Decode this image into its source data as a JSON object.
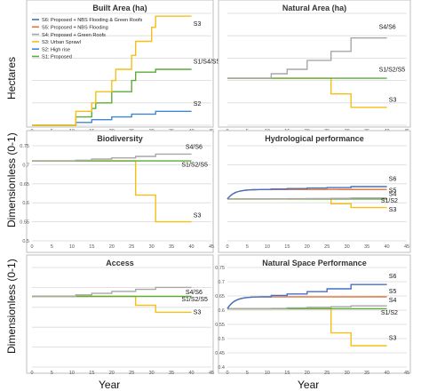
{
  "colors": {
    "S1": "#5cab3a",
    "S2": "#3f87d0",
    "S3": "#f6bf17",
    "S4": "#a7a7a7",
    "S5": "#e2763a",
    "S6": "#4471c4",
    "grid": "#d9d9d9",
    "frame": "#bfbfbf"
  },
  "legend": [
    {
      "id": "S6",
      "label": "S6: Proposed + NBS Flooding & Green Roofs",
      "color": "#4471c4"
    },
    {
      "id": "S5",
      "label": "S5: Proposed + NBS Flooding",
      "color": "#e2763a"
    },
    {
      "id": "S4",
      "label": "S4: Proposed + Green Roofs",
      "color": "#a7a7a7"
    },
    {
      "id": "S3",
      "label": "S3: Urban Sprawl",
      "color": "#f6bf17"
    },
    {
      "id": "S2",
      "label": "S2: High rise",
      "color": "#3f87d0"
    },
    {
      "id": "S1",
      "label": "S1: Proposed",
      "color": "#5cab3a"
    }
  ],
  "axis_labels": {
    "row1_y": "Hectares",
    "row2_y": "Dimensionless (0-1)",
    "row3_y": "Dimensionless (0-1)",
    "col1_x": "Year",
    "col2_x": "Year"
  },
  "chart_data": [
    {
      "type": "line",
      "title": "Built Area (ha)",
      "xlim": [
        0,
        45
      ],
      "xticks": [
        "0",
        "5",
        "10",
        "15",
        "20",
        "25",
        "30",
        "35",
        "40",
        "45"
      ],
      "ylim": [
        0,
        40
      ],
      "yticks": [],
      "series": [
        {
          "name": "S3",
          "x": [
            0,
            10,
            11,
            11,
            15,
            15,
            16,
            16,
            20,
            20,
            21,
            21,
            25,
            25,
            26,
            26,
            30,
            30,
            31,
            31,
            40
          ],
          "y": [
            0,
            0,
            0,
            5,
            5,
            8,
            8,
            12,
            12,
            16,
            16,
            20,
            20,
            25,
            25,
            30,
            30,
            35,
            35,
            39,
            39
          ]
        },
        {
          "name": "S1/S4/S5/S6",
          "x": [
            0,
            10,
            11,
            11,
            15,
            15,
            16,
            16,
            20,
            20,
            25,
            25,
            26,
            26,
            31,
            31,
            40
          ],
          "y": [
            0,
            0,
            0,
            3,
            3,
            6,
            6,
            8,
            8,
            12,
            12,
            16,
            16,
            19,
            19,
            20,
            20
          ]
        },
        {
          "name": "S2",
          "x": [
            0,
            10,
            11,
            11,
            15,
            15,
            20,
            20,
            25,
            25,
            31,
            31,
            40
          ],
          "y": [
            0,
            0,
            0,
            1,
            1,
            2,
            2,
            3,
            3,
            4,
            4,
            5,
            5
          ]
        }
      ],
      "labels": [
        {
          "text": "S3",
          "x": 40.5,
          "y": 35.5
        },
        {
          "text": "S1/S4/S5/S6",
          "x": 40.5,
          "y": 22
        },
        {
          "text": "S2",
          "x": 40.5,
          "y": 7
        }
      ]
    },
    {
      "type": "line",
      "title": "Natural Area (ha)",
      "xlim": [
        0,
        45
      ],
      "xticks": [
        "0",
        "5",
        "10",
        "15",
        "20",
        "25",
        "30",
        "35",
        "40",
        "45"
      ],
      "ylim": [
        40,
        90
      ],
      "yticks": [],
      "series": [
        {
          "name": "S4/S6",
          "x": [
            0,
            10,
            11,
            11,
            15,
            15,
            20,
            20,
            26,
            26,
            31,
            31,
            40
          ],
          "y": [
            61,
            61,
            61,
            63,
            63,
            65,
            65,
            69,
            69,
            73,
            73,
            79,
            79
          ]
        },
        {
          "name": "S1/S2/S5",
          "x": [
            0,
            40
          ],
          "y": [
            61,
            61
          ]
        },
        {
          "name": "S3",
          "x": [
            0,
            26,
            26,
            31,
            31,
            40
          ],
          "y": [
            61,
            61,
            54,
            54,
            48,
            48
          ]
        }
      ],
      "labels": [
        {
          "text": "S4/S6",
          "x": 38,
          "y": 83
        },
        {
          "text": "S1/S2/S5",
          "x": 38,
          "y": 64
        },
        {
          "text": "S3",
          "x": 40.5,
          "y": 50.5
        }
      ]
    },
    {
      "type": "line",
      "title": "Biodiversity",
      "xlim": [
        0,
        45
      ],
      "xticks": [
        "0",
        "5",
        "10",
        "15",
        "20",
        "25",
        "30",
        "35",
        "40",
        "45"
      ],
      "ylim": [
        0.5,
        0.75
      ],
      "yticks": [
        "0.5",
        "0.55",
        "0.6",
        "0.65",
        "0.7",
        "0.75"
      ],
      "series": [
        {
          "name": "S4/S6",
          "x": [
            0,
            10,
            11,
            11,
            15,
            15,
            20,
            20,
            26,
            26,
            31,
            31,
            40
          ],
          "y": [
            0.71,
            0.71,
            0.71,
            0.712,
            0.712,
            0.715,
            0.715,
            0.718,
            0.718,
            0.722,
            0.722,
            0.728,
            0.728
          ]
        },
        {
          "name": "S1/S2/S5",
          "x": [
            0,
            40
          ],
          "y": [
            0.71,
            0.71
          ]
        },
        {
          "name": "S3",
          "x": [
            0,
            26,
            26,
            31,
            31,
            40
          ],
          "y": [
            0.71,
            0.71,
            0.62,
            0.62,
            0.55,
            0.55
          ]
        }
      ],
      "labels": [
        {
          "text": "S4/S6",
          "x": 38.5,
          "y": 0.742
        },
        {
          "text": "S1/S2/S5",
          "x": 37.5,
          "y": 0.695
        },
        {
          "text": "S3",
          "x": 40.5,
          "y": 0.562
        }
      ]
    },
    {
      "type": "line",
      "title": "Hydrological performance",
      "xlim": [
        0,
        45
      ],
      "xticks": [
        "0",
        "5",
        "10",
        "15",
        "20",
        "25",
        "30",
        "35",
        "40",
        "45"
      ],
      "ylim": [
        0,
        1
      ],
      "yticks": [],
      "series": [
        {
          "name": "S6",
          "curve": "rise",
          "start": 0.44,
          "plateau": 0.54,
          "x": [
            0,
            10,
            11,
            11,
            15,
            15,
            20,
            20,
            25,
            25,
            31,
            31,
            40
          ],
          "y": [
            0.54,
            0.54,
            0.54,
            0.545,
            0.545,
            0.55,
            0.55,
            0.555,
            0.555,
            0.56,
            0.56,
            0.57,
            0.57
          ]
        },
        {
          "name": "S5",
          "curve": "rise",
          "start": 0.44,
          "plateau": 0.54,
          "x": [
            0,
            40
          ],
          "y": [
            0.54,
            0.54
          ]
        },
        {
          "name": "S4",
          "x": [
            0,
            10,
            11,
            11,
            15,
            15,
            20,
            20,
            26,
            26,
            31,
            31,
            40
          ],
          "y": [
            0.44,
            0.44,
            0.44,
            0.441,
            0.441,
            0.443,
            0.443,
            0.445,
            0.445,
            0.447,
            0.447,
            0.45,
            0.45
          ]
        },
        {
          "name": "S1/S2",
          "x": [
            0,
            40
          ],
          "y": [
            0.44,
            0.44
          ]
        },
        {
          "name": "S3",
          "x": [
            0,
            26,
            26,
            31,
            31,
            40
          ],
          "y": [
            0.44,
            0.44,
            0.39,
            0.39,
            0.35,
            0.35
          ]
        }
      ],
      "labels": [
        {
          "text": "S6",
          "x": 40.5,
          "y": 0.63
        },
        {
          "text": "S5",
          "x": 40.5,
          "y": 0.51
        },
        {
          "text": "S4",
          "x": 40.5,
          "y": 0.47
        },
        {
          "text": "S1/S2",
          "x": 38.5,
          "y": 0.4
        },
        {
          "text": "S3",
          "x": 40.5,
          "y": 0.31
        }
      ]
    },
    {
      "type": "line",
      "title": "Access",
      "xlim": [
        0,
        45
      ],
      "xticks": [
        "0",
        "5",
        "10",
        "15",
        "20",
        "25",
        "30",
        "35",
        "40",
        "45"
      ],
      "ylim": [
        0,
        1
      ],
      "yticks": [],
      "series": [
        {
          "name": "S4/S6",
          "x": [
            0,
            10,
            11,
            11,
            15,
            15,
            20,
            20,
            26,
            26,
            31,
            31,
            40
          ],
          "y": [
            0.71,
            0.71,
            0.71,
            0.725,
            0.725,
            0.74,
            0.74,
            0.76,
            0.76,
            0.78,
            0.78,
            0.8,
            0.8
          ]
        },
        {
          "name": "S1/S2/S5",
          "x": [
            0,
            40
          ],
          "y": [
            0.71,
            0.71
          ]
        },
        {
          "name": "S3",
          "x": [
            0,
            26,
            26,
            31,
            31,
            40
          ],
          "y": [
            0.71,
            0.71,
            0.62,
            0.62,
            0.55,
            0.55
          ]
        }
      ],
      "labels": [
        {
          "text": "S4/S6",
          "x": 38.5,
          "y": 0.73
        },
        {
          "text": "S1/S2/S5",
          "x": 37.5,
          "y": 0.66
        },
        {
          "text": "S3",
          "x": 40.5,
          "y": 0.53
        }
      ]
    },
    {
      "type": "line",
      "title": "Natural Space Performance",
      "xlim": [
        0,
        45
      ],
      "xticks": [
        "0",
        "5",
        "10",
        "15",
        "20",
        "25",
        "30",
        "35",
        "40",
        "45"
      ],
      "ylim": [
        0.4,
        0.75
      ],
      "yticks": [
        "0.4",
        "0.45",
        "0.5",
        "0.55",
        "0.6",
        "0.65",
        "0.7",
        "0.75"
      ],
      "series": [
        {
          "name": "S6",
          "curve": "rise",
          "start": 0.605,
          "plateau": 0.647,
          "x": [
            0,
            10,
            11,
            11,
            15,
            15,
            20,
            20,
            25,
            25,
            31,
            31,
            40
          ],
          "y": [
            0.647,
            0.647,
            0.647,
            0.652,
            0.652,
            0.657,
            0.657,
            0.665,
            0.665,
            0.675,
            0.675,
            0.69,
            0.69
          ]
        },
        {
          "name": "S5",
          "curve": "rise",
          "start": 0.605,
          "plateau": 0.647,
          "x": [
            0,
            40
          ],
          "y": [
            0.647,
            0.647
          ]
        },
        {
          "name": "S4",
          "x": [
            0,
            10,
            11,
            11,
            15,
            15,
            20,
            20,
            26,
            26,
            31,
            31,
            40
          ],
          "y": [
            0.605,
            0.605,
            0.605,
            0.606,
            0.606,
            0.608,
            0.608,
            0.61,
            0.61,
            0.612,
            0.612,
            0.615,
            0.615
          ]
        },
        {
          "name": "S1/S2",
          "x": [
            0,
            40
          ],
          "y": [
            0.605,
            0.605
          ]
        },
        {
          "name": "S3",
          "x": [
            0,
            26,
            26,
            31,
            31,
            40
          ],
          "y": [
            0.605,
            0.605,
            0.52,
            0.52,
            0.475,
            0.475
          ]
        }
      ],
      "labels": [
        {
          "text": "S6",
          "x": 40.5,
          "y": 0.713
        },
        {
          "text": "S5",
          "x": 40.5,
          "y": 0.66
        },
        {
          "text": "S4",
          "x": 40.5,
          "y": 0.628
        },
        {
          "text": "S1/S2",
          "x": 38.5,
          "y": 0.585
        },
        {
          "text": "S3",
          "x": 40.5,
          "y": 0.495
        }
      ]
    }
  ]
}
